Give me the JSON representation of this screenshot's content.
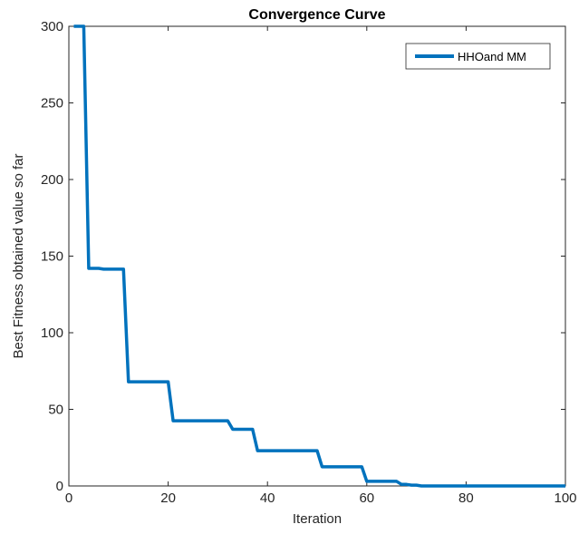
{
  "chart_data": {
    "type": "line",
    "title": "Convergence Curve",
    "xlabel": "Iteration",
    "ylabel": "Best Fitness obtained value so far",
    "xlim": [
      0,
      100
    ],
    "ylim": [
      0,
      300
    ],
    "xticks": [
      0,
      20,
      40,
      60,
      80,
      100
    ],
    "yticks": [
      0,
      50,
      100,
      150,
      200,
      250,
      300
    ],
    "grid": false,
    "legend_position": "top-right",
    "series": [
      {
        "name": "HHOand MM",
        "color": "#0072BD",
        "x": [
          1,
          3,
          4,
          5,
          6,
          7,
          8,
          9,
          10,
          11,
          12,
          13,
          14,
          15,
          16,
          17,
          18,
          19,
          20,
          21,
          22,
          23,
          24,
          25,
          26,
          27,
          28,
          29,
          30,
          31,
          32,
          33,
          34,
          35,
          36,
          37,
          38,
          39,
          40,
          41,
          42,
          43,
          44,
          45,
          46,
          47,
          48,
          49,
          50,
          51,
          52,
          53,
          54,
          55,
          56,
          57,
          58,
          59,
          60,
          61,
          62,
          63,
          64,
          65,
          66,
          67,
          68,
          69,
          70,
          71,
          72,
          73,
          74,
          75,
          76,
          77,
          78,
          79,
          80,
          81,
          82,
          83,
          84,
          85,
          86,
          87,
          88,
          89,
          90,
          91,
          92,
          93,
          94,
          95,
          96,
          97,
          98,
          99,
          100
        ],
        "y": [
          300,
          300,
          142,
          142,
          142,
          141.5,
          141.5,
          141.5,
          141.5,
          141.5,
          68,
          68,
          68,
          68,
          68,
          68,
          68,
          68,
          68,
          42.5,
          42.5,
          42.5,
          42.5,
          42.5,
          42.5,
          42.5,
          42.5,
          42.5,
          42.5,
          42.5,
          42.5,
          37,
          37,
          37,
          37,
          37,
          23,
          23,
          23,
          23,
          23,
          23,
          23,
          23,
          23,
          23,
          23,
          23,
          23,
          12.5,
          12.5,
          12.5,
          12.5,
          12.5,
          12.5,
          12.5,
          12.5,
          12.5,
          3,
          3,
          3,
          3,
          3,
          3,
          3,
          1,
          1,
          0.5,
          0.5,
          0,
          0,
          0,
          0,
          0,
          0,
          0,
          0,
          0,
          0,
          0,
          0,
          0,
          0,
          0,
          0,
          0,
          0,
          0,
          0,
          0,
          0,
          0,
          0,
          0,
          0,
          0,
          0,
          0,
          0
        ]
      }
    ]
  }
}
